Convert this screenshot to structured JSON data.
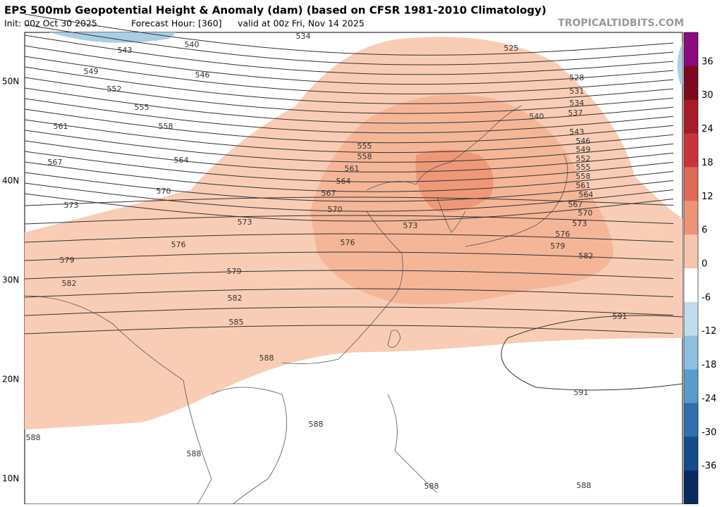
{
  "header": {
    "title": "EPS 500mb Geopotential Height & Anomaly (dam) (based on CFSR 1981-2010 Climatology)",
    "init": "Init: 00z Oct 30 2025",
    "forecast": "Forecast Hour: [360]",
    "valid": "valid at 00z Fri, Nov 14 2025",
    "credit": "TROPICALTIDBITS.COM"
  },
  "lat_labels": [
    "50N",
    "40N",
    "30N",
    "20N",
    "10N"
  ],
  "colorbar": {
    "labels": [
      "36",
      "30",
      "24",
      "18",
      "12",
      "6",
      "0",
      "-6",
      "-12",
      "-18",
      "-24",
      "-30",
      "-36"
    ]
  },
  "contour_labels": [
    "534",
    "540",
    "543",
    "525",
    "549",
    "546",
    "528",
    "552",
    "531",
    "534",
    "555",
    "537",
    "540",
    "561",
    "558",
    "543",
    "546",
    "549",
    "555",
    "558",
    "552",
    "567",
    "564",
    "555",
    "561",
    "558",
    "564",
    "561",
    "570",
    "567",
    "564",
    "573",
    "570",
    "567",
    "570",
    "573",
    "573",
    "573",
    "576",
    "576",
    "576",
    "579",
    "579",
    "582",
    "579",
    "582",
    "582",
    "585",
    "591",
    "588",
    "591",
    "588",
    "588",
    "588",
    "588",
    "588"
  ]
}
